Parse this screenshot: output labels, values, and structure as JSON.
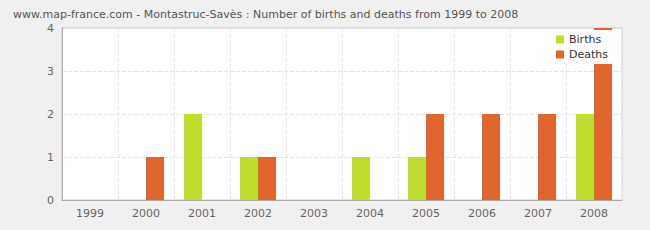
{
  "chart_data": {
    "type": "bar",
    "title": "www.map-france.com - Montastruc-Savès : Number of births and deaths from 1999 to 2008",
    "categories": [
      "1999",
      "2000",
      "2001",
      "2002",
      "2003",
      "2004",
      "2005",
      "2006",
      "2007",
      "2008"
    ],
    "series": [
      {
        "name": "Births",
        "color": "#bfdd2c",
        "values": [
          0,
          0,
          2,
          1,
          0,
          1,
          1,
          0,
          0,
          2
        ]
      },
      {
        "name": "Deaths",
        "color": "#e0652e",
        "values": [
          0,
          1,
          0,
          1,
          0,
          0,
          2,
          2,
          2,
          4
        ]
      }
    ],
    "ylim": [
      0,
      4
    ],
    "yticks": [
      0,
      1,
      2,
      3,
      4
    ],
    "grid": true,
    "legend": "top-right"
  }
}
